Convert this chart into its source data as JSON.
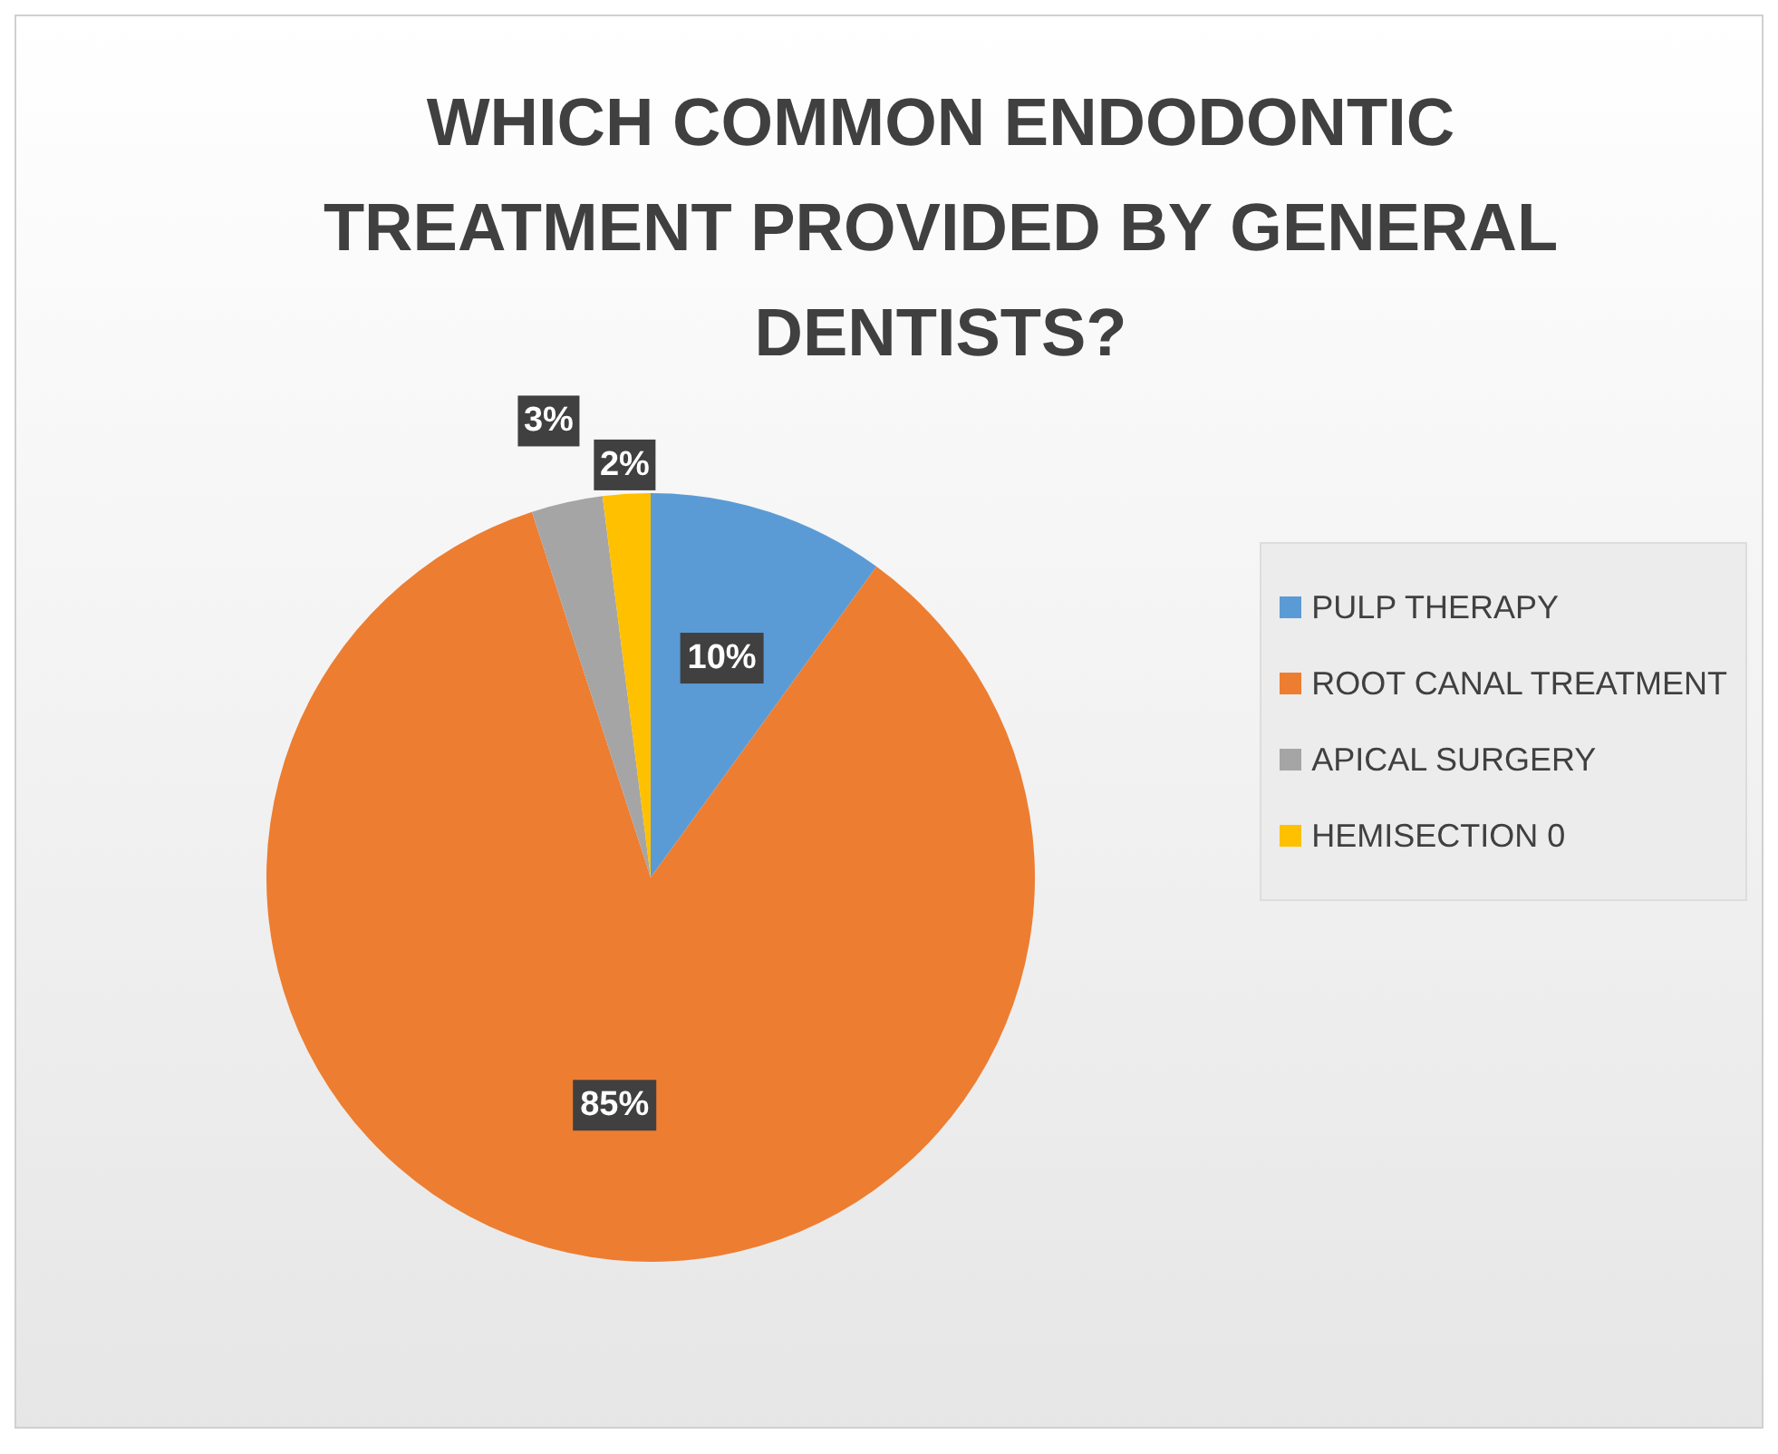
{
  "chart_data": {
    "type": "pie",
    "title": "WHICH COMMON ENDODONTIC TREATMENT PROVIDED BY GENERAL DENTISTS?",
    "categories": [
      "PULP THERAPY",
      "ROOT CANAL TREATMENT",
      "APICAL SURGERY",
      "HEMISECTION 0"
    ],
    "values": [
      10,
      85,
      3,
      2
    ],
    "colors": [
      "#5b9bd5",
      "#ed7d31",
      "#a5a5a5",
      "#ffc000"
    ],
    "value_labels": [
      "10%",
      "85%",
      "3%",
      "2%"
    ],
    "legend": "right"
  }
}
